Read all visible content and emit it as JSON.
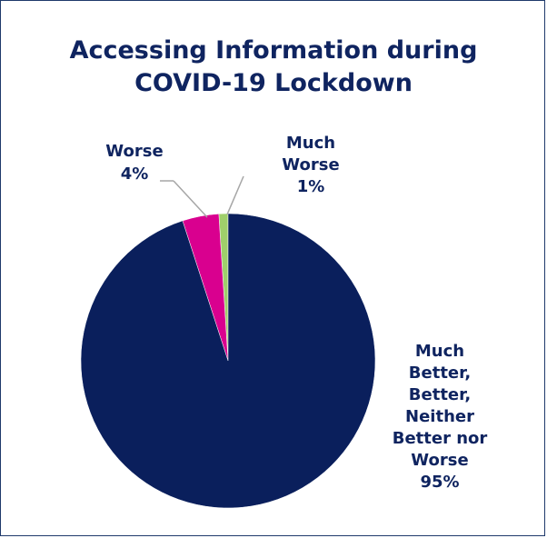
{
  "chart_data": {
    "type": "pie",
    "title_lines": [
      "Accessing Information during",
      "COVID-19 Lockdown"
    ],
    "slices": [
      {
        "label_lines": [
          "Much",
          "Better,",
          "Better,",
          "Neither",
          "Better nor",
          "Worse"
        ],
        "percent_label": "95%",
        "value": 95,
        "color": "#0a1f5c"
      },
      {
        "label_lines": [
          "Worse"
        ],
        "percent_label": "4%",
        "value": 4,
        "color": "#d9008f"
      },
      {
        "label_lines": [
          "Much",
          "Worse"
        ],
        "percent_label": "1%",
        "value": 1,
        "color": "#9fcf6b"
      }
    ],
    "legend": "none"
  }
}
